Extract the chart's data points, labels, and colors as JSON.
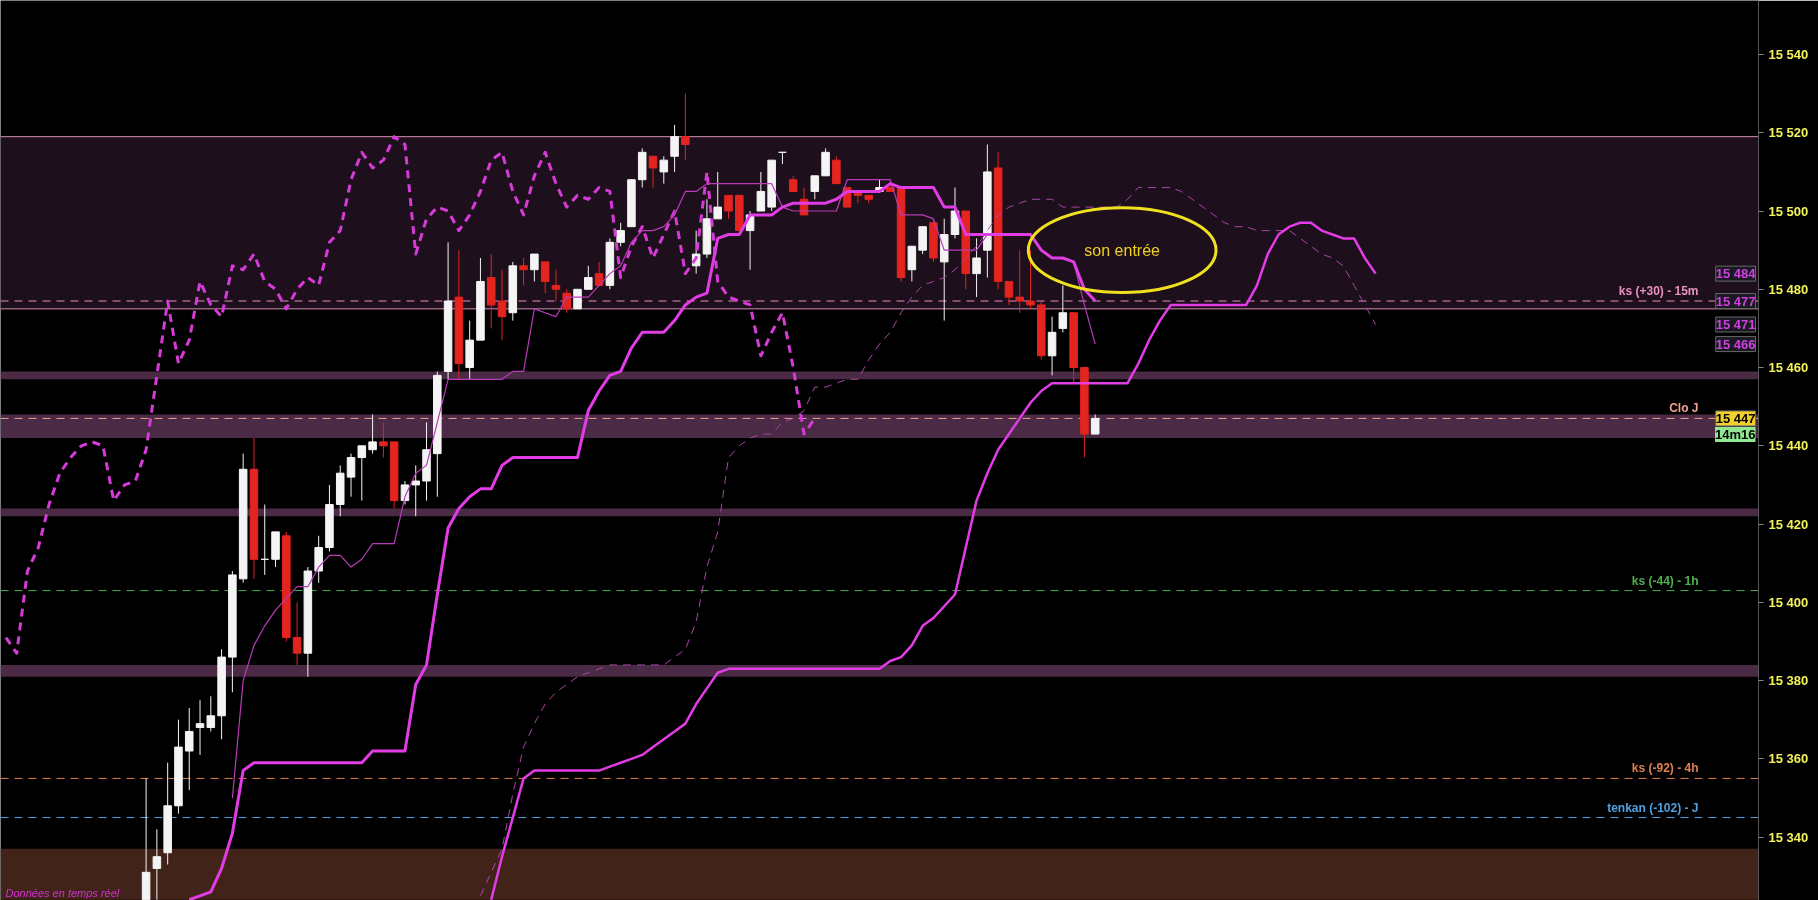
{
  "chart_data": {
    "type": "candlestick",
    "categories": [
      null,
      null,
      null,
      null,
      null,
      null,
      null,
      null,
      null,
      null,
      null,
      null,
      null,
      null,
      null,
      null,
      null,
      null,
      null,
      null,
      null,
      null,
      null,
      null,
      null,
      null,
      null,
      null,
      null,
      null,
      null,
      null,
      null,
      null,
      null,
      null,
      null,
      null,
      null,
      null,
      null,
      null,
      null,
      null,
      null,
      null,
      null,
      null,
      null,
      null,
      null,
      null,
      null,
      null,
      null,
      null,
      null,
      null,
      null,
      null,
      null,
      null,
      null,
      null,
      null,
      null,
      null,
      null,
      null,
      null,
      null,
      null,
      null,
      null,
      null,
      null,
      null,
      null,
      null,
      null,
      null,
      null,
      null,
      null,
      null,
      null,
      null,
      null,
      null,
      null,
      null,
      null,
      null,
      null,
      null,
      null,
      null,
      null,
      null,
      null,
      null,
      null,
      null,
      null,
      null,
      null,
      null,
      null,
      null,
      null,
      null,
      null,
      null,
      null,
      null,
      null,
      null,
      null,
      null,
      null,
      null,
      null,
      null,
      null,
      null,
      null,
      null,
      null,
      null,
      null,
      null,
      null,
      null,
      null,
      null,
      null,
      null,
      null,
      null,
      null,
      null,
      null,
      null,
      null,
      null,
      null,
      null,
      null,
      null,
      null,
      null,
      null,
      null,
      null,
      null,
      null,
      null,
      null,
      null,
      null,
      null,
      null,
      null
    ],
    "ohlc": [
      null,
      null,
      null,
      null,
      null,
      null,
      null,
      null,
      null,
      null,
      null,
      null,
      null,
      [
        15324,
        15355,
        15324,
        15331
      ],
      [
        15332,
        15342,
        15324,
        15335
      ],
      [
        15336,
        15359,
        15333,
        15348
      ],
      [
        15348,
        15370,
        15346,
        15363
      ],
      [
        15362,
        15373,
        15352,
        15367
      ],
      [
        15368,
        15375,
        15361,
        15369
      ],
      [
        15368,
        15376,
        15367,
        15371
      ],
      [
        15371,
        15388,
        15365,
        15386
      ],
      [
        15386,
        15408,
        15377,
        15407
      ],
      [
        15406,
        15438,
        15405,
        15434
      ],
      [
        15434,
        15442,
        15406,
        15411
      ],
      [
        15411,
        15425,
        15407,
        15411
      ],
      [
        15411,
        15418,
        15409,
        15418
      ],
      [
        15417,
        15418,
        15390,
        15391
      ],
      [
        15391,
        15400,
        15384,
        15387
      ],
      [
        15387,
        15409,
        15381,
        15408
      ],
      [
        15408,
        15417,
        15405,
        15414
      ],
      [
        15414,
        15430,
        15413,
        15425
      ],
      [
        15425,
        15435,
        15422,
        15433
      ],
      [
        15432,
        15438,
        15427,
        15437
      ],
      [
        15437,
        15440,
        15426,
        15440
      ],
      [
        15439,
        15448,
        15438,
        15441
      ],
      [
        15441,
        15446,
        15437,
        15440
      ],
      [
        15441,
        15441,
        15424,
        15426
      ],
      [
        15426,
        15431,
        15425,
        15430
      ],
      [
        15430,
        15435,
        15422,
        15431
      ],
      [
        15431,
        15446,
        15426,
        15439
      ],
      [
        15438,
        15459,
        15427,
        15458
      ],
      [
        15459,
        15492,
        15457,
        15477
      ],
      [
        15478,
        15490,
        15457,
        15461
      ],
      [
        15460,
        15472,
        15457,
        15467
      ],
      [
        15467,
        15488,
        15467,
        15482
      ],
      [
        15483,
        15489,
        15470,
        15476
      ],
      [
        15477,
        15485,
        15467,
        15473
      ],
      [
        15474,
        15487,
        15472,
        15486
      ],
      [
        15486,
        15488,
        15481,
        15485
      ],
      [
        15485,
        15489,
        15482,
        15489
      ],
      [
        15487,
        15487,
        15479,
        15482
      ],
      [
        15481,
        15485,
        15477,
        15480
      ],
      [
        15479,
        15480,
        15474,
        15475
      ],
      [
        15475,
        15480,
        15475,
        15480
      ],
      [
        15480,
        15486,
        15480,
        15483
      ],
      [
        15484,
        15487,
        15481,
        15481
      ],
      [
        15481,
        15493,
        15480,
        15492
      ],
      [
        15492,
        15497,
        15491,
        15495
      ],
      [
        15496,
        15508,
        15496,
        15508
      ],
      [
        15508,
        15516,
        15506,
        15515
      ],
      [
        15514,
        15514,
        15506,
        15511
      ],
      [
        15510,
        15514,
        15507,
        15513
      ],
      [
        15514,
        15522,
        15510,
        15519
      ],
      [
        15519,
        15530,
        15513,
        15517
      ],
      [
        15486,
        15495,
        15484,
        15489
      ],
      [
        15489,
        15503,
        15488,
        15498
      ],
      [
        15498,
        15510,
        15498,
        15501
      ],
      [
        15504,
        15504,
        15498,
        15500
      ],
      [
        15504,
        15504,
        15495,
        15495
      ],
      [
        15495,
        15500,
        15485,
        15499
      ],
      [
        15500,
        15510,
        15500,
        15505
      ],
      [
        15501,
        15513,
        15500,
        15513
      ],
      [
        15515,
        15515,
        15512,
        15515
      ],
      [
        15508,
        15509,
        15505,
        15505
      ],
      [
        15503,
        15506,
        15499,
        15499
      ],
      [
        15505,
        15509,
        15503,
        15509
      ],
      [
        15509,
        15516,
        15509,
        15515
      ],
      [
        15513,
        15514,
        15507,
        15507
      ],
      [
        15506,
        15506,
        15501,
        15501
      ],
      [
        15505,
        15505,
        15502,
        15504
      ],
      [
        15504,
        15504,
        15502,
        15503
      ],
      [
        15505,
        15508,
        15505,
        15506
      ],
      [
        15506,
        15507,
        15505,
        15505
      ],
      [
        15506,
        15506,
        15482,
        15483
      ],
      [
        15485,
        15491,
        15482,
        15491
      ],
      [
        15490,
        15496,
        15489,
        15496
      ],
      [
        15497,
        15498,
        15487,
        15488
      ],
      [
        15487,
        15498,
        15472,
        15494
      ],
      [
        15494,
        15506,
        15493,
        15500
      ],
      [
        15500,
        15500,
        15480,
        15484
      ],
      [
        15484,
        15493,
        15478,
        15488
      ],
      [
        15490,
        15517,
        15483,
        15510
      ],
      [
        15511,
        15515,
        15480,
        15482
      ],
      [
        15482,
        15482,
        15476,
        15478
      ],
      [
        15478,
        15490,
        15474,
        15477
      ],
      [
        15477,
        15490,
        15475,
        15476
      ],
      [
        15476,
        15477,
        15462,
        15463
      ],
      [
        15463,
        15473,
        15458,
        15469
      ],
      [
        15470,
        15481,
        15469,
        15474
      ],
      [
        15474,
        15474,
        15456,
        15460
      ],
      [
        15460,
        15460,
        15437,
        15443
      ],
      [
        15443,
        15448,
        15443,
        15447
      ],
      null,
      null,
      null,
      null,
      null,
      null,
      null,
      null,
      null,
      null,
      null,
      null,
      null,
      null,
      null,
      null,
      null,
      null,
      null,
      null,
      null,
      null,
      null,
      null,
      null,
      null,
      null,
      null,
      null,
      null,
      null,
      null,
      null,
      null,
      null,
      null,
      null,
      null,
      null,
      null,
      null,
      null,
      null,
      null,
      null,
      null,
      null,
      null,
      null,
      null,
      null,
      null,
      null,
      null,
      null,
      null,
      null,
      null,
      null,
      null,
      null
    ],
    "colors": [
      null,
      null,
      null,
      null,
      null,
      null,
      null,
      null,
      null,
      null,
      null,
      null,
      null,
      "#f4f4f4",
      "#f4f4f4",
      "#f4f4f4",
      "#f4f4f4",
      "#f4f4f4",
      "#f4f4f4",
      "#f4f4f4",
      "#f4f4f4",
      "#f4f4f4",
      "#f4f4f4",
      "#e3241f",
      "#f4f4f4",
      "#f4f4f4",
      "#e3241f",
      "#e3241f",
      "#f4f4f4",
      "#f4f4f4",
      "#f4f4f4",
      "#f4f4f4",
      "#f4f4f4",
      "#f4f4f4",
      "#f4f4f4",
      "#e3241f",
      "#e3241f",
      "#f4f4f4",
      "#f4f4f4",
      "#f4f4f4",
      "#f4f4f4",
      "#f4f4f4",
      "#e3241f",
      "#f4f4f4",
      "#f4f4f4",
      "#e3241f",
      "#e3241f",
      "#f4f4f4",
      "#e3241f",
      "#f4f4f4",
      "#e3241f",
      "#e3241f",
      "#e3241f",
      "#f4f4f4",
      "#f4f4f4",
      "#e3241f",
      "#f4f4f4",
      "#f4f4f4",
      "#f4f4f4",
      "#f4f4f4",
      "#e3241f",
      "#f4f4f4",
      "#f4f4f4",
      "#e3241f",
      "#f4f4f4",
      "#f4f4f4",
      "#f4f4f4",
      "#e3241f",
      "#e3241f",
      "#f4f4f4",
      "#f4f4f4",
      "#f4f4f4",
      "#f4f4f4",
      "#e3241f",
      "#e3241f",
      "#f4f4f4",
      "#f4f4f4",
      "#e3241f",
      "#e3241f",
      "#e3241f",
      "#e3241f",
      "#f4f4f4",
      "#e3241f",
      "#e3241f",
      "#f4f4f4",
      "#f4f4f4",
      "#e3241f",
      "#f4f4f4",
      "#f4f4f4",
      "#e3241f",
      "#f4f4f4",
      "#f4f4f4",
      "#e3241f",
      "#e3241f",
      "#e3241f",
      "#e3241f",
      "#e3241f",
      "#f4f4f4",
      "#f4f4f4",
      "#e3241f",
      "#e3241f",
      "#f4f4f4",
      null,
      null,
      null,
      null,
      null,
      null,
      null,
      null,
      null,
      null,
      null,
      null,
      null,
      null,
      null,
      null,
      null,
      null,
      null,
      null,
      null,
      null,
      null,
      null,
      null,
      null,
      null,
      null,
      null,
      null,
      null,
      null,
      null,
      null,
      null,
      null,
      null,
      null,
      null,
      null,
      null,
      null,
      null,
      null,
      null,
      null,
      null,
      null,
      null,
      null,
      null,
      null,
      null,
      null,
      null,
      null,
      null,
      null,
      null,
      null,
      null
    ],
    "series": [
      {
        "type": "line",
        "color": "#d63ad8",
        "line_style": "dashed",
        "values": [
          15391,
          15387,
          15408,
          15414,
          15425,
          15433,
          15437,
          15440,
          15441,
          15440,
          15426,
          15430,
          15431,
          15439,
          15458,
          15477,
          15461,
          15467,
          15482,
          15476,
          15473,
          15486,
          15485,
          15489,
          15482,
          15480,
          15475,
          15480,
          15483,
          15481,
          15492,
          15495,
          15508,
          15515,
          15511,
          15513,
          15519,
          15517,
          15489,
          15498,
          15501,
          15500,
          15495,
          15499,
          15505,
          15513,
          15515,
          15505,
          15499,
          15509,
          15515,
          15507,
          15501,
          15504,
          15503,
          15506,
          15505,
          15483,
          15491,
          15496,
          15488,
          15494,
          15500,
          15484,
          15488,
          15510,
          15482,
          15478,
          15477,
          15476,
          15463,
          15469,
          15474,
          15460,
          15443,
          15447,
          null,
          null,
          null,
          null,
          null,
          null,
          null,
          null,
          null,
          null,
          null,
          null,
          null,
          null,
          null,
          null,
          null,
          null,
          null,
          null,
          null,
          null,
          null,
          null,
          null,
          null,
          null,
          null,
          null,
          null,
          null,
          null,
          null,
          null,
          null,
          null,
          null,
          null,
          null,
          null,
          null,
          null,
          null,
          null,
          null,
          null,
          null,
          null,
          null,
          null,
          null,
          null,
          null,
          null,
          null,
          null,
          null,
          null,
          null,
          null,
          null,
          null,
          null,
          null,
          null,
          null,
          null,
          null,
          null,
          null,
          null,
          null,
          null,
          null,
          null,
          null,
          null,
          null,
          null,
          null,
          null,
          null,
          null,
          null,
          null,
          null,
          null
        ]
      },
      {
        "type": "line",
        "color": "#b83cb8",
        "line_style": "solid",
        "values": [
          null,
          null,
          null,
          null,
          null,
          null,
          null,
          null,
          null,
          null,
          null,
          null,
          null,
          null,
          null,
          null,
          null,
          null,
          null,
          null,
          null,
          15350,
          15380,
          15389,
          15394,
          15398,
          15401,
          15404,
          15404,
          15409,
          15412,
          15412,
          15409,
          15411,
          15415,
          15415,
          15415,
          15427,
          15433,
          15435,
          15446,
          15457,
          15457,
          15457,
          15457,
          15457,
          15457,
          15459,
          15459,
          15475,
          15474,
          15473,
          15478,
          15478,
          15478,
          15481,
          15484,
          15486,
          15492,
          15495,
          15495,
          15496,
          15499,
          15505,
          15505,
          15507,
          15507,
          15507,
          15507,
          15507,
          15507,
          15507,
          15501,
          15500,
          15500,
          15500,
          15500,
          15500,
          15508,
          15508,
          15508,
          15508,
          15508,
          15499,
          15499,
          15499,
          15498,
          15490,
          15490,
          15490,
          15490,
          15494,
          15494,
          15494,
          15494,
          15494,
          15490,
          15488,
          15488,
          15487,
          15476,
          15466,
          null,
          null,
          null,
          null,
          null,
          null,
          null,
          null,
          null,
          null,
          null,
          null,
          null,
          null,
          null,
          null,
          null,
          null,
          null,
          null,
          null,
          null,
          null,
          null,
          null,
          null,
          null,
          null,
          null,
          null,
          null,
          null,
          null,
          null,
          null,
          null,
          null,
          null,
          null,
          null,
          null,
          null,
          null,
          null,
          null,
          null,
          null,
          null,
          null,
          null,
          null,
          null,
          null,
          null,
          null,
          null,
          null,
          null,
          null,
          null,
          null
        ]
      },
      {
        "type": "line",
        "color": "#e23ce6",
        "line_style": "solid",
        "values": [
          null,
          null,
          null,
          null,
          null,
          null,
          null,
          null,
          null,
          null,
          null,
          null,
          null,
          null,
          null,
          null,
          null,
          15324,
          15325,
          15326,
          15332,
          15341,
          15357,
          15359,
          15359,
          15359,
          15359,
          15359,
          15359,
          15359,
          15359,
          15359,
          15359,
          15359,
          15362,
          15362,
          15362,
          15362,
          15379,
          15384,
          15402,
          15419,
          15424,
          15427,
          15429,
          15429,
          15435,
          15437,
          15437,
          15437,
          15437,
          15437,
          15437,
          15437,
          15449,
          15454,
          15458,
          15459,
          15465,
          15469,
          15469,
          15469,
          15472,
          15476,
          15478,
          15479,
          15493,
          15494,
          15494,
          15499,
          15499,
          15499,
          15501,
          15502,
          15502,
          15502,
          15502,
          15503,
          15505,
          15505,
          15505,
          15505,
          15507,
          15506,
          15506,
          15506,
          15506,
          15501,
          15501,
          15494,
          15494,
          15494,
          15494,
          15494,
          15494,
          15494,
          15490,
          15488,
          15488,
          15487,
          15480,
          15477,
          null,
          null,
          null,
          null,
          null,
          null,
          null,
          null,
          null,
          null,
          null,
          null,
          null,
          null,
          null,
          null,
          null,
          null,
          null,
          null,
          null,
          null,
          null,
          null,
          null,
          null,
          null,
          null,
          null,
          null,
          null,
          null,
          null,
          null,
          null,
          null,
          null,
          null,
          null,
          null,
          null,
          null,
          null,
          null,
          null,
          null,
          null,
          null,
          null,
          null,
          null,
          null,
          null,
          null,
          null,
          null,
          null,
          null,
          null,
          null,
          null
        ]
      },
      {
        "type": "line",
        "color": "#a848a8",
        "line_style": "dashed",
        "values": [
          null,
          null,
          null,
          null,
          null,
          null,
          null,
          null,
          null,
          null,
          null,
          null,
          null,
          null,
          null,
          null,
          null,
          null,
          null,
          null,
          null,
          null,
          null,
          null,
          null,
          null,
          null,
          null,
          null,
          null,
          null,
          null,
          null,
          null,
          null,
          null,
          null,
          null,
          null,
          null,
          null,
          null,
          null,
          null,
          15325,
          15331,
          15337,
          15351,
          15363,
          15369,
          15374,
          15377,
          15379,
          15381,
          15382,
          15383,
          15384,
          15384,
          15384,
          15384,
          15384,
          15384,
          15386,
          15388,
          15395,
          15409,
          15418,
          15437,
          15440,
          15442,
          15443,
          15443,
          15446,
          15447,
          15449,
          15455,
          15455,
          15456,
          15457,
          15457,
          15462,
          15466,
          15469,
          15474,
          15478,
          15481,
          15482,
          15483,
          15485,
          15488,
          15491,
          15495,
          15499,
          15501,
          15502,
          15503,
          15503,
          15503,
          15501,
          15501,
          15501,
          15501,
          15501,
          15501,
          15503,
          15506,
          15506,
          15506,
          15506,
          15505,
          15503,
          15501,
          15499,
          15497,
          15496,
          15496,
          15495,
          15495,
          15495,
          15495,
          15493,
          15491,
          15489,
          15488,
          15486,
          15481,
          15476,
          15471,
          null,
          null,
          null,
          null,
          null,
          null,
          null,
          null,
          null,
          null,
          null,
          null,
          null,
          null,
          null,
          null,
          null,
          null,
          null,
          null,
          null,
          null,
          null,
          null,
          null,
          null,
          null,
          null,
          null,
          null,
          null,
          null,
          null,
          null,
          null
        ]
      },
      {
        "type": "line",
        "color": "#e23ce6",
        "line_style": "solid",
        "values": [
          null,
          null,
          null,
          null,
          null,
          null,
          null,
          null,
          null,
          null,
          null,
          null,
          null,
          null,
          null,
          null,
          null,
          null,
          null,
          null,
          null,
          null,
          null,
          null,
          null,
          null,
          null,
          null,
          null,
          null,
          null,
          null,
          null,
          null,
          null,
          null,
          null,
          null,
          null,
          null,
          null,
          null,
          null,
          null,
          null,
          15324,
          15335,
          15345,
          15355,
          15357,
          15357,
          15357,
          15357,
          15357,
          15357,
          15357,
          15358,
          15359,
          15360,
          15361,
          15363,
          15365,
          15367,
          15369,
          15374,
          15378,
          15382,
          15383,
          15383,
          15383,
          15383,
          15383,
          15383,
          15383,
          15383,
          15383,
          15383,
          15383,
          15383,
          15383,
          15383,
          15383,
          15385,
          15386,
          15389,
          15394,
          15396,
          15399,
          15402,
          15414,
          15426,
          15433,
          15439,
          15443,
          15447,
          15451,
          15454,
          15456,
          15456,
          15456,
          15456,
          15456,
          15456,
          15456,
          15456,
          15461,
          15467,
          15472,
          15476,
          15476,
          15476,
          15476,
          15476,
          15476,
          15476,
          15476,
          15481,
          15489,
          15494,
          15496,
          15497,
          15497,
          15495,
          15494,
          15493,
          15493,
          15488,
          15484,
          null,
          null,
          null,
          null,
          null,
          null,
          null,
          null,
          null,
          null,
          null,
          null,
          null,
          null,
          null,
          null,
          null,
          null,
          null,
          null,
          null,
          null,
          null,
          null,
          null,
          null,
          null,
          null,
          null,
          null,
          null,
          null,
          null,
          null,
          null
        ]
      }
    ],
    "ylim": [
      15323.8,
      15553.8
    ],
    "yticks": [
      {
        "value": 15340,
        "label": "15 340"
      },
      {
        "value": 15360,
        "label": "15 360"
      },
      {
        "value": 15380,
        "label": "15 380"
      },
      {
        "value": 15400,
        "label": "15 400"
      },
      {
        "value": 15420,
        "label": "15 420"
      },
      {
        "value": 15440,
        "label": "15 440"
      },
      {
        "value": 15460,
        "label": "15 460"
      },
      {
        "value": 15480,
        "label": "15 480"
      },
      {
        "value": 15500,
        "label": "15 500"
      },
      {
        "value": 15520,
        "label": "15 520"
      },
      {
        "value": 15540,
        "label": "15 540"
      }
    ],
    "tick_labels": "y",
    "bands": [
      {
        "axis": "y",
        "from": 15475,
        "to": 15519,
        "color": "#1d0f1b"
      },
      {
        "axis": "y",
        "from": 15457,
        "to": 15459,
        "color": "#4a2a44"
      },
      {
        "axis": "y",
        "from": 15442,
        "to": 15448,
        "color": "#4a2a44"
      },
      {
        "axis": "y",
        "from": 15422,
        "to": 15424,
        "color": "#4a2a44"
      },
      {
        "axis": "y",
        "from": 15381,
        "to": 15384,
        "color": "#4a2a44"
      },
      {
        "axis": "y",
        "from": 15324,
        "to": 15337,
        "color": "#42231a"
      }
    ],
    "ref_lines": [
      {
        "axis": "y",
        "value": 15519,
        "color": "#d890b8",
        "line_style": "solid"
      },
      {
        "axis": "y",
        "value": 15475,
        "color": "#d890b8",
        "line_style": "solid"
      },
      {
        "axis": "y",
        "value": 15477,
        "label": "ks (+30) - 15m",
        "color": "#e890c0",
        "line_style": "dashed"
      },
      {
        "axis": "y",
        "value": 15447,
        "label": "Clo J",
        "color": "#f0a090",
        "line_style": "dashed"
      },
      {
        "axis": "y",
        "value": 15403,
        "label": "ks (-44) - 1h",
        "color": "#50b050",
        "line_style": "dashed"
      },
      {
        "axis": "y",
        "value": 15355,
        "label": "ks (-92) - 4h",
        "color": "#e08050",
        "line_style": "dashed"
      },
      {
        "axis": "y",
        "value": 15345,
        "label": "tenkan (-102) - J",
        "color": "#50a0e0",
        "line_style": "dashed"
      }
    ],
    "annotations": [
      "son entrée",
      "14m16",
      "Données en temps réel",
      {
        "text": "15 484",
        "y": 15484
      },
      {
        "text": "15 477",
        "y": 15477
      },
      {
        "text": "15 471",
        "y": 15471
      },
      {
        "text": "15 466",
        "y": 15466
      },
      {
        "text": "15 447",
        "y": 15447
      }
    ]
  }
}
